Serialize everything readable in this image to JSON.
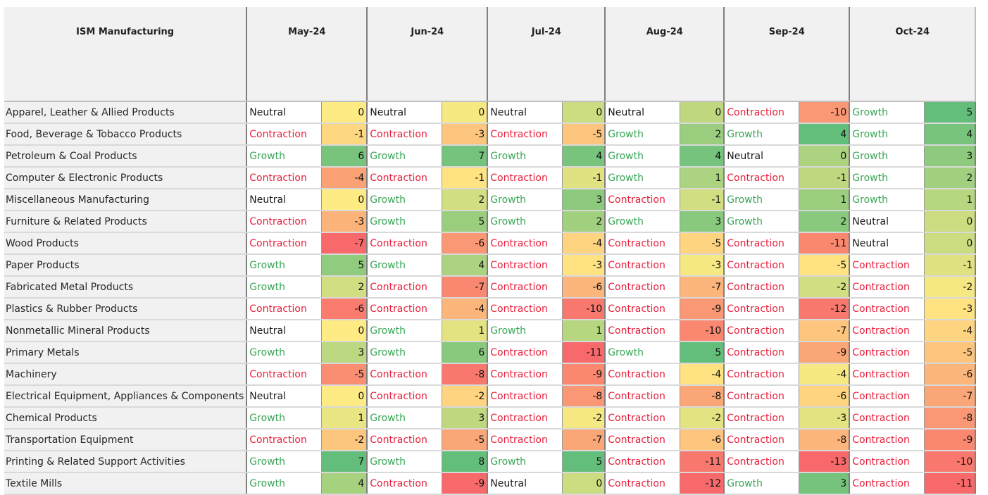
{
  "table": {
    "header": "ISM Manufacturing",
    "months": [
      "May-24",
      "Jun-24",
      "Jul-24",
      "Aug-24",
      "Sep-24",
      "Oct-24"
    ],
    "heat_colors": {
      "low": "#f8696b",
      "mid": "#ffeb84",
      "high": "#63be7b"
    },
    "rows": [
      {
        "industry": "Apparel, Leather & Allied Products",
        "cells": [
          {
            "status": "Neutral",
            "value": 0
          },
          {
            "status": "Neutral",
            "value": 0
          },
          {
            "status": "Neutral",
            "value": 0
          },
          {
            "status": "Neutral",
            "value": 0
          },
          {
            "status": "Contraction",
            "value": -10
          },
          {
            "status": "Growth",
            "value": 5
          }
        ]
      },
      {
        "industry": "Food, Beverage & Tobacco Products",
        "cells": [
          {
            "status": "Contraction",
            "value": -1
          },
          {
            "status": "Contraction",
            "value": -3
          },
          {
            "status": "Contraction",
            "value": -5
          },
          {
            "status": "Growth",
            "value": 2
          },
          {
            "status": "Growth",
            "value": 4
          },
          {
            "status": "Growth",
            "value": 4
          }
        ]
      },
      {
        "industry": "Petroleum & Coal Products",
        "cells": [
          {
            "status": "Growth",
            "value": 6
          },
          {
            "status": "Growth",
            "value": 7
          },
          {
            "status": "Growth",
            "value": 4
          },
          {
            "status": "Growth",
            "value": 4
          },
          {
            "status": "Neutral",
            "value": 0
          },
          {
            "status": "Growth",
            "value": 3
          }
        ]
      },
      {
        "industry": "Computer & Electronic Products",
        "cells": [
          {
            "status": "Contraction",
            "value": -4
          },
          {
            "status": "Contraction",
            "value": -1
          },
          {
            "status": "Contraction",
            "value": -1
          },
          {
            "status": "Growth",
            "value": 1
          },
          {
            "status": "Contraction",
            "value": -1
          },
          {
            "status": "Growth",
            "value": 2
          }
        ]
      },
      {
        "industry": "Miscellaneous Manufacturing",
        "cells": [
          {
            "status": "Neutral",
            "value": 0
          },
          {
            "status": "Growth",
            "value": 2
          },
          {
            "status": "Growth",
            "value": 3
          },
          {
            "status": "Contraction",
            "value": -1
          },
          {
            "status": "Growth",
            "value": 1
          },
          {
            "status": "Growth",
            "value": 1
          }
        ]
      },
      {
        "industry": "Furniture & Related Products",
        "cells": [
          {
            "status": "Contraction",
            "value": -3
          },
          {
            "status": "Growth",
            "value": 5
          },
          {
            "status": "Growth",
            "value": 2
          },
          {
            "status": "Growth",
            "value": 3
          },
          {
            "status": "Growth",
            "value": 2
          },
          {
            "status": "Neutral",
            "value": 0
          }
        ]
      },
      {
        "industry": "Wood Products",
        "cells": [
          {
            "status": "Contraction",
            "value": -7
          },
          {
            "status": "Contraction",
            "value": -6
          },
          {
            "status": "Contraction",
            "value": -4
          },
          {
            "status": "Contraction",
            "value": -5
          },
          {
            "status": "Contraction",
            "value": -11
          },
          {
            "status": "Neutral",
            "value": 0
          }
        ]
      },
      {
        "industry": "Paper Products",
        "cells": [
          {
            "status": "Growth",
            "value": 5
          },
          {
            "status": "Growth",
            "value": 4
          },
          {
            "status": "Contraction",
            "value": -3
          },
          {
            "status": "Contraction",
            "value": -3
          },
          {
            "status": "Contraction",
            "value": -5
          },
          {
            "status": "Contraction",
            "value": -1
          }
        ]
      },
      {
        "industry": "Fabricated Metal Products",
        "cells": [
          {
            "status": "Growth",
            "value": 2
          },
          {
            "status": "Contraction",
            "value": -7
          },
          {
            "status": "Contraction",
            "value": -6
          },
          {
            "status": "Contraction",
            "value": -7
          },
          {
            "status": "Contraction",
            "value": -2
          },
          {
            "status": "Contraction",
            "value": -2
          }
        ]
      },
      {
        "industry": "Plastics & Rubber Products",
        "cells": [
          {
            "status": "Contraction",
            "value": -6
          },
          {
            "status": "Contraction",
            "value": -4
          },
          {
            "status": "Contraction",
            "value": -10
          },
          {
            "status": "Contraction",
            "value": -9
          },
          {
            "status": "Contraction",
            "value": -12
          },
          {
            "status": "Contraction",
            "value": -3
          }
        ]
      },
      {
        "industry": "Nonmetallic Mineral Products",
        "cells": [
          {
            "status": "Neutral",
            "value": 0
          },
          {
            "status": "Growth",
            "value": 1
          },
          {
            "status": "Growth",
            "value": 1
          },
          {
            "status": "Contraction",
            "value": -10
          },
          {
            "status": "Contraction",
            "value": -7
          },
          {
            "status": "Contraction",
            "value": -4
          }
        ]
      },
      {
        "industry": "Primary Metals",
        "cells": [
          {
            "status": "Growth",
            "value": 3
          },
          {
            "status": "Growth",
            "value": 6
          },
          {
            "status": "Contraction",
            "value": -11
          },
          {
            "status": "Growth",
            "value": 5
          },
          {
            "status": "Contraction",
            "value": -9
          },
          {
            "status": "Contraction",
            "value": -5
          }
        ]
      },
      {
        "industry": "Machinery",
        "cells": [
          {
            "status": "Contraction",
            "value": -5
          },
          {
            "status": "Contraction",
            "value": -8
          },
          {
            "status": "Contraction",
            "value": -9
          },
          {
            "status": "Contraction",
            "value": -4
          },
          {
            "status": "Contraction",
            "value": -4
          },
          {
            "status": "Contraction",
            "value": -6
          }
        ]
      },
      {
        "industry": "Electrical Equipment, Appliances & Components",
        "cells": [
          {
            "status": "Neutral",
            "value": 0
          },
          {
            "status": "Contraction",
            "value": -2
          },
          {
            "status": "Contraction",
            "value": -8
          },
          {
            "status": "Contraction",
            "value": -8
          },
          {
            "status": "Contraction",
            "value": -6
          },
          {
            "status": "Contraction",
            "value": -7
          }
        ]
      },
      {
        "industry": "Chemical Products",
        "cells": [
          {
            "status": "Growth",
            "value": 1
          },
          {
            "status": "Growth",
            "value": 3
          },
          {
            "status": "Contraction",
            "value": -2
          },
          {
            "status": "Contraction",
            "value": -2
          },
          {
            "status": "Contraction",
            "value": -3
          },
          {
            "status": "Contraction",
            "value": -8
          }
        ]
      },
      {
        "industry": "Transportation Equipment",
        "cells": [
          {
            "status": "Contraction",
            "value": -2
          },
          {
            "status": "Contraction",
            "value": -5
          },
          {
            "status": "Contraction",
            "value": -7
          },
          {
            "status": "Contraction",
            "value": -6
          },
          {
            "status": "Contraction",
            "value": -8
          },
          {
            "status": "Contraction",
            "value": -9
          }
        ]
      },
      {
        "industry": "Printing & Related Support Activities",
        "cells": [
          {
            "status": "Growth",
            "value": 7
          },
          {
            "status": "Growth",
            "value": 8
          },
          {
            "status": "Growth",
            "value": 5
          },
          {
            "status": "Contraction",
            "value": -11
          },
          {
            "status": "Contraction",
            "value": -13
          },
          {
            "status": "Contraction",
            "value": -10
          }
        ]
      },
      {
        "industry": "Textile Mills",
        "cells": [
          {
            "status": "Growth",
            "value": 4
          },
          {
            "status": "Contraction",
            "value": -9
          },
          {
            "status": "Neutral",
            "value": 0
          },
          {
            "status": "Contraction",
            "value": -12
          },
          {
            "status": "Growth",
            "value": 3
          },
          {
            "status": "Contraction",
            "value": -11
          }
        ]
      }
    ]
  }
}
